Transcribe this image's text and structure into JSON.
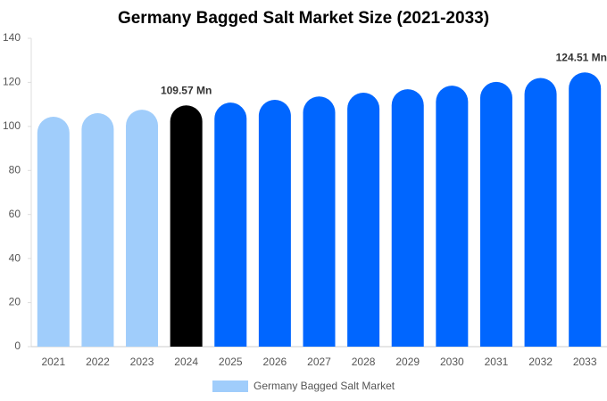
{
  "chart_data": {
    "type": "bar",
    "title": "Germany Bagged Salt Market Size (2021-2033)",
    "categories": [
      "2021",
      "2022",
      "2023",
      "2024",
      "2025",
      "2026",
      "2027",
      "2028",
      "2029",
      "2030",
      "2031",
      "2032",
      "2033"
    ],
    "series": [
      {
        "name": "Germany Bagged Salt Market",
        "color": "#a0cdfb",
        "values": [
          104.4,
          106,
          107.6,
          109.57,
          110.8,
          112.1,
          113.6,
          115.3,
          116.9,
          118.5,
          120.2,
          122,
          124.51
        ],
        "value_labels": [
          null,
          null,
          null,
          "109.57 Mn",
          null,
          null,
          null,
          null,
          null,
          null,
          null,
          null,
          "124.51 Mn"
        ],
        "colors": [
          "#a0cdfb",
          "#a0cdfb",
          "#a0cdfb",
          "#000000",
          "#0066ff",
          "#0066ff",
          "#0066ff",
          "#0066ff",
          "#0066ff",
          "#0066ff",
          "#0066ff",
          "#0066ff",
          "#0066ff"
        ]
      }
    ],
    "ylim": [
      0,
      140
    ],
    "yticks": [
      0,
      20,
      40,
      60,
      80,
      100,
      120,
      140
    ],
    "grid": false
  }
}
